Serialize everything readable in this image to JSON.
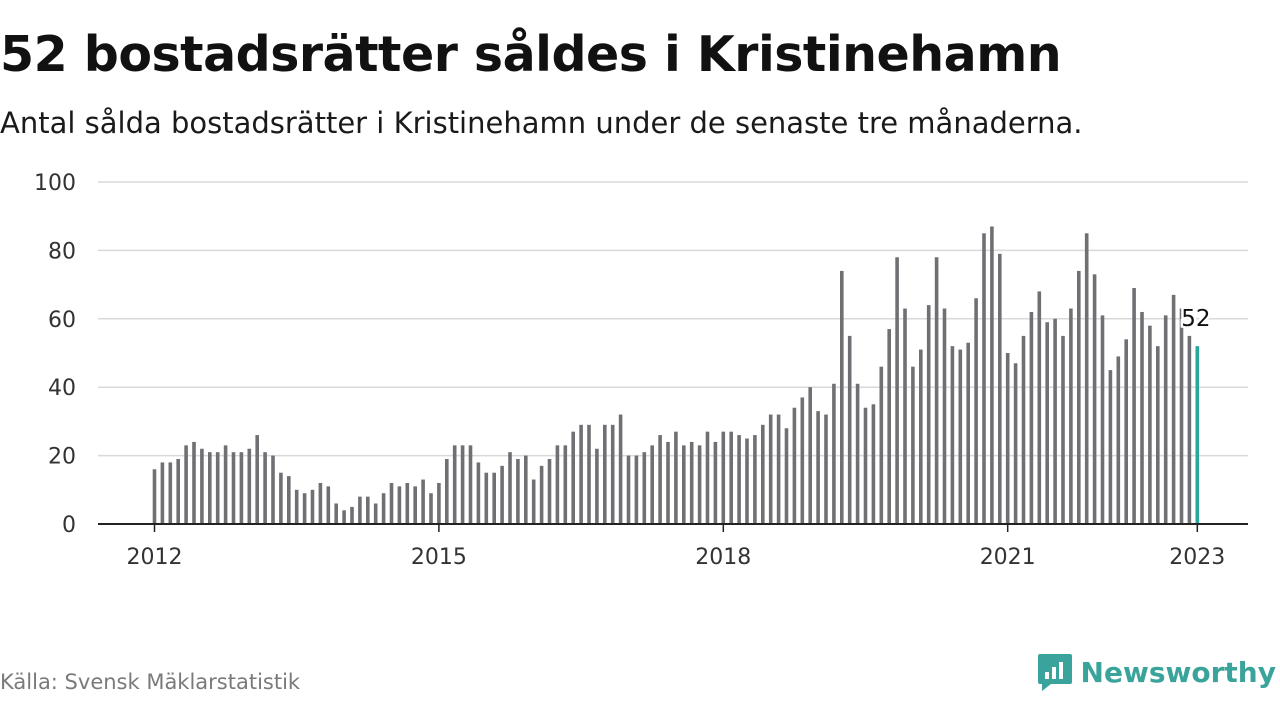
{
  "title": "52 bostadsrätter såldes i Kristinehamn",
  "subtitle": "Antal sålda bostadsrätter i Kristinehamn under de senaste tre månaderna.",
  "source": "Källa: Svensk Mäklarstatistik",
  "brand": {
    "name": "Newsworthy"
  },
  "colors": {
    "bar": "#6f6f74",
    "highlight": "#2aa69b",
    "grid": "#d9d9d9",
    "axis": "#222222",
    "brand": "#3aa39b"
  },
  "chart_data": {
    "type": "bar",
    "title": "",
    "xlabel": "",
    "ylabel": "",
    "ylim": [
      0,
      100
    ],
    "grid": true,
    "yticks": [
      0,
      20,
      40,
      60,
      80,
      100
    ],
    "xtick_labels": [
      "2012",
      "2015",
      "2018",
      "2021",
      "2023"
    ],
    "xtick_positions": [
      0,
      36,
      72,
      108,
      132
    ],
    "start": "2012-01",
    "end": "2023-01",
    "highlight_label": "52",
    "values": [
      16,
      18,
      18,
      19,
      23,
      24,
      22,
      21,
      21,
      23,
      21,
      21,
      22,
      26,
      21,
      20,
      15,
      14,
      10,
      9,
      10,
      12,
      11,
      6,
      4,
      5,
      8,
      8,
      6,
      9,
      12,
      11,
      12,
      11,
      13,
      9,
      12,
      19,
      23,
      23,
      23,
      18,
      15,
      15,
      17,
      21,
      19,
      20,
      13,
      17,
      19,
      23,
      23,
      27,
      29,
      29,
      22,
      29,
      29,
      32,
      20,
      20,
      21,
      23,
      26,
      24,
      27,
      23,
      24,
      23,
      27,
      24,
      27,
      27,
      26,
      25,
      26,
      29,
      32,
      32,
      28,
      34,
      37,
      40,
      33,
      32,
      41,
      74,
      55,
      41,
      34,
      35,
      46,
      57,
      78,
      63,
      46,
      51,
      64,
      78,
      63,
      52,
      51,
      53,
      66,
      85,
      87,
      79,
      50,
      47,
      55,
      62,
      68,
      59,
      60,
      55,
      63,
      74,
      85,
      73,
      61,
      45,
      49,
      54,
      69,
      62,
      58,
      52,
      61,
      67,
      63,
      55,
      52
    ]
  }
}
